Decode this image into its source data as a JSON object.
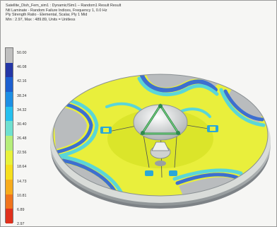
{
  "header": {
    "line1": "Satellite_Dish_Fem_sim1 : Dynamic/Sim1 – Random1 Result Result",
    "line2": "Ntl Laminate - Random Failure Indices, Frequency 1, 0.0 Hz",
    "line3": "Ply Strength Ratio - Elemental, Scalar, Ply 1 Mid",
    "line4": "Min : 2.97, Max : 489.89, Units = Unitless"
  },
  "legend": {
    "ticks": [
      "50.00",
      "46.08",
      "42.16",
      "38.24",
      "34.32",
      "30.40",
      "26.48",
      "22.56",
      "18.64",
      "14.73",
      "10.81",
      "6.89",
      "2.97"
    ],
    "colors": [
      "#bfbfbf",
      "#2436a6",
      "#1c5fcf",
      "#1d8fe4",
      "#27c0ee",
      "#6fe0d0",
      "#b6ee7a",
      "#e8f23a",
      "#f6df1d",
      "#f7ac1c",
      "#f0741d",
      "#e0311d"
    ],
    "above_max_color": "#bfbfbf"
  },
  "model": {
    "description_icon": "satellite-dish-fem-model",
    "colors": {
      "dish_fill": "#e9ef3c",
      "dish_center": "#dbe52a",
      "cyan_band": "#5ad6d8",
      "blue_band": "#3d6fd0",
      "grey_region": "#b9bcbe",
      "rim_light": "#eff2ee",
      "rim_dark": "#9ba1a4",
      "hub": "#d7dad8",
      "truss": "#2f8b4d"
    }
  }
}
